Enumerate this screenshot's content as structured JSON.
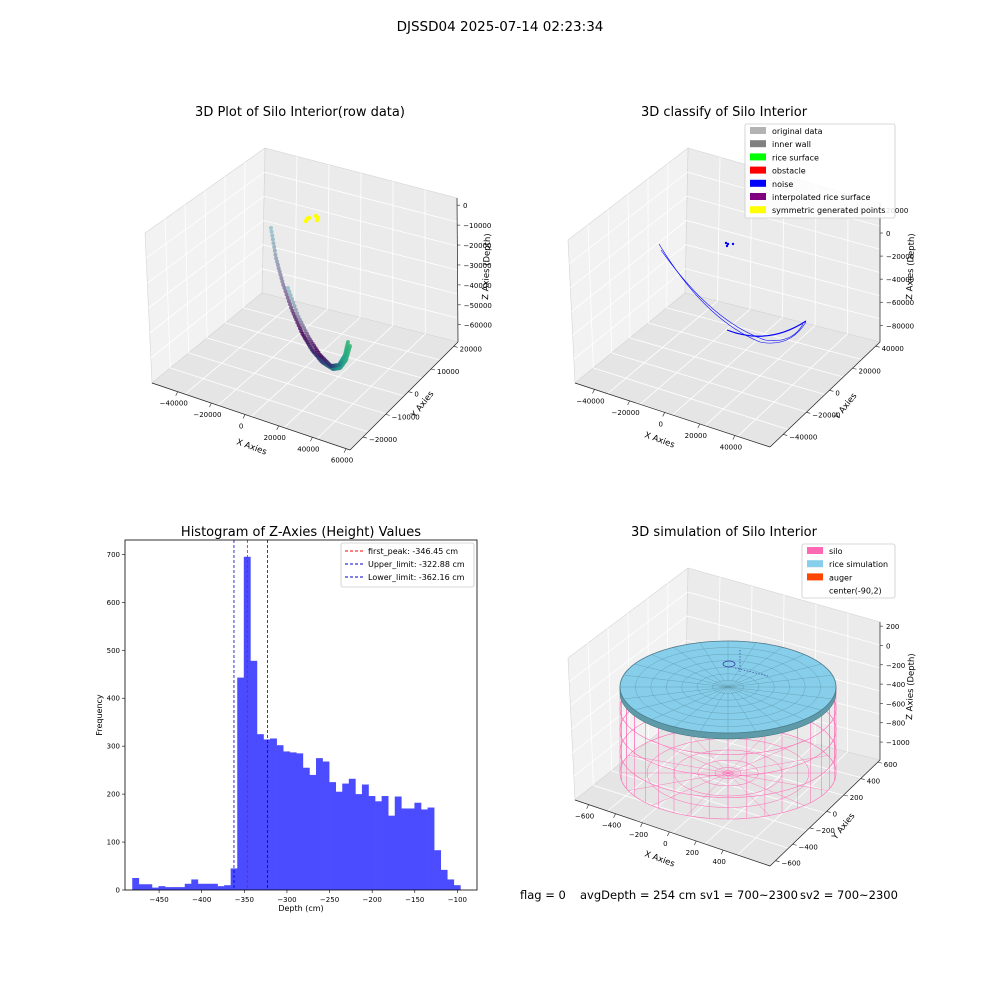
{
  "figure": {
    "suptitle": "DJSSD04 2025-07-14 02:23:34"
  },
  "colors": {
    "histogram_bar": "#4b4bff",
    "peak_line": "#ff0000",
    "limit_line": "#0000c8",
    "silo": "#ff69b4",
    "rice_simulation": "#87ceeb",
    "auger": "#ff4500",
    "original_data": "#b3b3b3",
    "inner_wall": "#808080",
    "rice_surface": "#00ff00",
    "obstacle": "#ff0000",
    "noise": "#0000ff",
    "interpolated": "#800080",
    "symmetric": "#ffff00"
  },
  "panels": {
    "raw": {
      "title": "3D Plot of Silo Interior(row data)",
      "xlabel": "X Axies",
      "ylabel": "Y Axies",
      "zlabel": "Z Axies (Depth)",
      "xticks": [
        "−40000",
        "−20000",
        "0",
        "20000",
        "40000",
        "60000"
      ],
      "yticks": [
        "20000",
        "10000",
        "0",
        "−10000",
        "−20000"
      ],
      "zticks": [
        "0",
        "−10000",
        "−20000",
        "−30000",
        "−40000",
        "−50000",
        "−60000"
      ]
    },
    "classify": {
      "title": "3D classify of Silo Interior",
      "xlabel": "X Axies",
      "ylabel": "Y Axies",
      "zlabel": "Z Axies (Depth)",
      "xticks": [
        "−40000",
        "−20000",
        "0",
        "20000",
        "40000"
      ],
      "yticks": [
        "40000",
        "20000",
        "0",
        "−20000",
        "−40000"
      ],
      "zticks": [
        "20000",
        "0",
        "−20000",
        "−40000",
        "−60000",
        "−80000"
      ],
      "legend": [
        {
          "label": "original data",
          "color": "#b3b3b3"
        },
        {
          "label": "inner wall",
          "color": "#808080"
        },
        {
          "label": "rice surface",
          "color": "#00ff00"
        },
        {
          "label": "obstacle",
          "color": "#ff0000"
        },
        {
          "label": "noise",
          "color": "#0000ff"
        },
        {
          "label": "interpolated rice surface",
          "color": "#800080"
        },
        {
          "label": "symmetric generated points",
          "color": "#ffff00"
        }
      ]
    },
    "histogram": {
      "title": "Histogram of Z-Axies (Height) Values",
      "xlabel": "Depth (cm)",
      "ylabel": "Frequency",
      "legend": [
        {
          "label": "first_peak: -346.45 cm",
          "color": "#ff0000"
        },
        {
          "label": "Upper_limit: -322.88 cm",
          "color": "#0000c8"
        },
        {
          "label": "Lower_limit: -362.16 cm",
          "color": "#0000c8"
        }
      ]
    },
    "simulation": {
      "title": "3D simulation of Silo Interior",
      "xlabel": "X Axies",
      "ylabel": "Y Axies",
      "zlabel": "Z Axies (Depth)",
      "xticks": [
        "−600",
        "−400",
        "−200",
        "0",
        "200",
        "400"
      ],
      "yticks": [
        "600",
        "400",
        "200",
        "0",
        "−200",
        "−400",
        "−600"
      ],
      "zticks": [
        "200",
        "0",
        "−200",
        "−400",
        "−600",
        "−800",
        "−1000"
      ],
      "legend": [
        {
          "label": "silo",
          "color": "#ff69b4"
        },
        {
          "label": "rice simulation",
          "color": "#87ceeb"
        },
        {
          "label": "auger",
          "color": "#ff4500"
        },
        {
          "label": "center(-90,2)",
          "color": ""
        }
      ]
    }
  },
  "status": {
    "flag": "flag = 0",
    "avg_depth": "avgDepth = 254 cm",
    "sv1": "sv1 = 700~2300",
    "sv2": "sv2 = 700~2300"
  },
  "chart_data": [
    {
      "type": "scatter",
      "title": "3D Plot of Silo Interior(row data)",
      "xlabel": "X Axies",
      "ylabel": "Y Axies",
      "zlabel": "Z Axies (Depth)",
      "xlim": [
        -50000,
        60000
      ],
      "ylim": [
        -25000,
        25000
      ],
      "zlim": [
        -65000,
        5000
      ],
      "grid": true
    },
    {
      "type": "scatter",
      "title": "3D classify of Silo Interior",
      "xlabel": "X Axies",
      "ylabel": "Y Axies",
      "zlabel": "Z Axies (Depth)",
      "xlim": [
        -50000,
        50000
      ],
      "ylim": [
        -50000,
        50000
      ],
      "zlim": [
        -85000,
        25000
      ],
      "legend_position": "top-right",
      "grid": true
    },
    {
      "type": "bar",
      "title": "Histogram of Z-Axies (Height) Values",
      "xlabel": "Depth (cm)",
      "ylabel": "Frequency",
      "xlim": [
        -490,
        -77
      ],
      "ylim": [
        0,
        730
      ],
      "xticks": [
        -450,
        -400,
        -350,
        -300,
        -250,
        -200,
        -150,
        -100
      ],
      "yticks": [
        0,
        100,
        200,
        300,
        400,
        500,
        600,
        700
      ],
      "bin_width": 7.7,
      "bin_start": -481.5,
      "values": [
        25,
        12,
        12,
        5,
        8,
        6,
        6,
        6,
        13,
        22,
        13,
        13,
        13,
        8,
        10,
        45,
        443,
        695,
        478,
        325,
        314,
        316,
        302,
        289,
        287,
        285,
        255,
        240,
        275,
        268,
        225,
        205,
        222,
        232,
        200,
        220,
        196,
        185,
        196,
        155,
        195,
        170,
        170,
        182,
        168,
        172,
        83,
        42,
        22,
        10
      ],
      "vlines": [
        {
          "name": "first_peak",
          "x": -346.45,
          "color": "#ff0000"
        },
        {
          "name": "Upper_limit",
          "x": -322.88,
          "color": "#0000c8"
        },
        {
          "name": "Lower_limit",
          "x": -362.16,
          "color": "#0000c8"
        }
      ],
      "legend_position": "top-right",
      "grid": false
    },
    {
      "type": "scatter",
      "title": "3D simulation of Silo Interior",
      "xlabel": "X Axies",
      "ylabel": "Y Axies",
      "zlabel": "Z Axies (Depth)",
      "xlim": [
        -700,
        500
      ],
      "ylim": [
        -700,
        700
      ],
      "zlim": [
        -1100,
        300
      ],
      "center": [
        -90,
        2
      ],
      "legend_position": "top-right",
      "grid": true
    }
  ]
}
